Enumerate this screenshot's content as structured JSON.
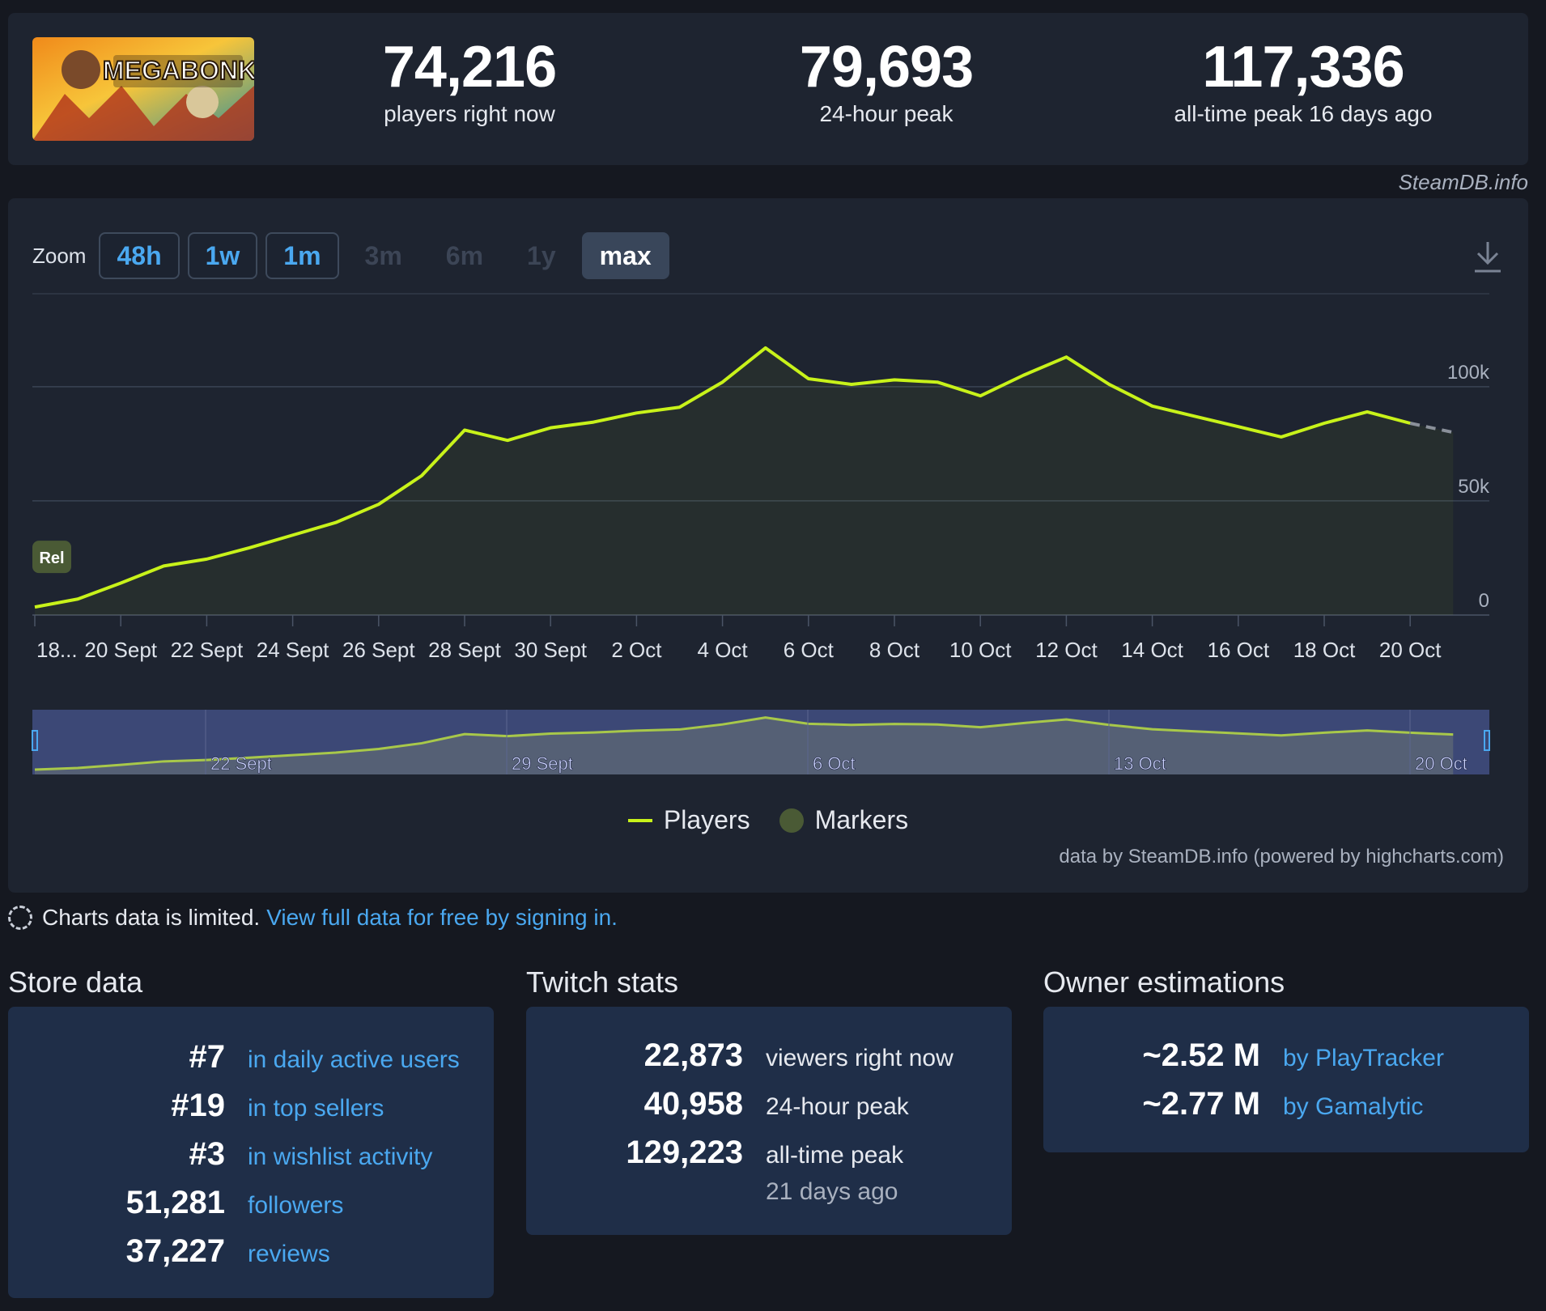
{
  "header": {
    "game_logo_text": "MEGABONK",
    "current_players": "74,216",
    "current_label": "players right now",
    "peak24": "79,693",
    "peak24_label": "24-hour peak",
    "alltime_peak": "117,336",
    "alltime_label": "all-time peak 16 days ago"
  },
  "watermark": "SteamDB.info",
  "zoom": {
    "label": "Zoom",
    "buttons": [
      {
        "label": "48h",
        "state": "active"
      },
      {
        "label": "1w",
        "state": "active"
      },
      {
        "label": "1m",
        "state": "active"
      },
      {
        "label": "3m",
        "state": "disabled"
      },
      {
        "label": "6m",
        "state": "disabled"
      },
      {
        "label": "1y",
        "state": "disabled"
      },
      {
        "label": "max",
        "state": "selected"
      }
    ]
  },
  "chart_data": {
    "type": "line",
    "x": [
      "18 Sept",
      "19 Sept",
      "20 Sept",
      "21 Sept",
      "22 Sept",
      "23 Sept",
      "24 Sept",
      "25 Sept",
      "26 Sept",
      "27 Sept",
      "28 Sept",
      "29 Sept",
      "30 Sept",
      "1 Oct",
      "2 Oct",
      "3 Oct",
      "4 Oct",
      "5 Oct",
      "6 Oct",
      "7 Oct",
      "8 Oct",
      "9 Oct",
      "10 Oct",
      "11 Oct",
      "12 Oct",
      "13 Oct",
      "14 Oct",
      "15 Oct",
      "16 Oct",
      "17 Oct",
      "18 Oct",
      "19 Oct",
      "20 Oct",
      "21 Oct"
    ],
    "series": [
      {
        "name": "Players",
        "color": "#c8f21a",
        "values": [
          3500,
          7000,
          14000,
          21500,
          24500,
          29500,
          35000,
          40500,
          48500,
          61000,
          81000,
          76500,
          82000,
          84500,
          88500,
          91000,
          102000,
          117000,
          103500,
          101000,
          103000,
          102000,
          96000,
          105000,
          113000,
          101000,
          91500,
          87000,
          82500,
          78000,
          84000,
          89000,
          84000,
          80000
        ],
        "projected_from_index": 32
      }
    ],
    "yticks": [
      0,
      50000,
      100000
    ],
    "ytick_labels": [
      "0",
      "50k",
      "100k"
    ],
    "ylim": [
      0,
      140000
    ],
    "xtick_labels": [
      "18...",
      "20 Sept",
      "22 Sept",
      "24 Sept",
      "26 Sept",
      "28 Sept",
      "30 Sept",
      "2 Oct",
      "4 Oct",
      "6 Oct",
      "8 Oct",
      "10 Oct",
      "12 Oct",
      "14 Oct",
      "16 Oct",
      "18 Oct",
      "20 Oct"
    ],
    "marker": {
      "label": "Rel"
    },
    "navigator_labels": [
      "22 Sept",
      "29 Sept",
      "6 Oct",
      "13 Oct",
      "20 Oct"
    ],
    "grid": true,
    "legend_position": "bottom-center",
    "legend": [
      "Players",
      "Markers"
    ],
    "line_color": "#c8f21a",
    "marker_color": "#4a5a35"
  },
  "credits": "data by SteamDB.info (powered by highcharts.com)",
  "notice": {
    "text": "Charts data is limited.",
    "link": "View full data for free by signing in."
  },
  "store": {
    "title": "Store data",
    "rows": [
      {
        "value": "#7",
        "text": "in daily active users"
      },
      {
        "value": "#19",
        "text": "in top sellers"
      },
      {
        "value": "#3",
        "text": "in wishlist activity"
      },
      {
        "value": "51,281",
        "text": "followers"
      },
      {
        "value": "37,227",
        "text": "reviews"
      }
    ]
  },
  "twitch": {
    "title": "Twitch stats",
    "rows": [
      {
        "value": "22,873",
        "text": "viewers right now"
      },
      {
        "value": "40,958",
        "text": "24-hour peak"
      },
      {
        "value": "129,223",
        "text": "all-time peak"
      }
    ],
    "subtext": "21 days ago"
  },
  "owners": {
    "title": "Owner estimations",
    "rows": [
      {
        "value": "~2.52 M",
        "text": "by PlayTracker"
      },
      {
        "value": "~2.77 M",
        "text": "by Gamalytic"
      }
    ]
  }
}
